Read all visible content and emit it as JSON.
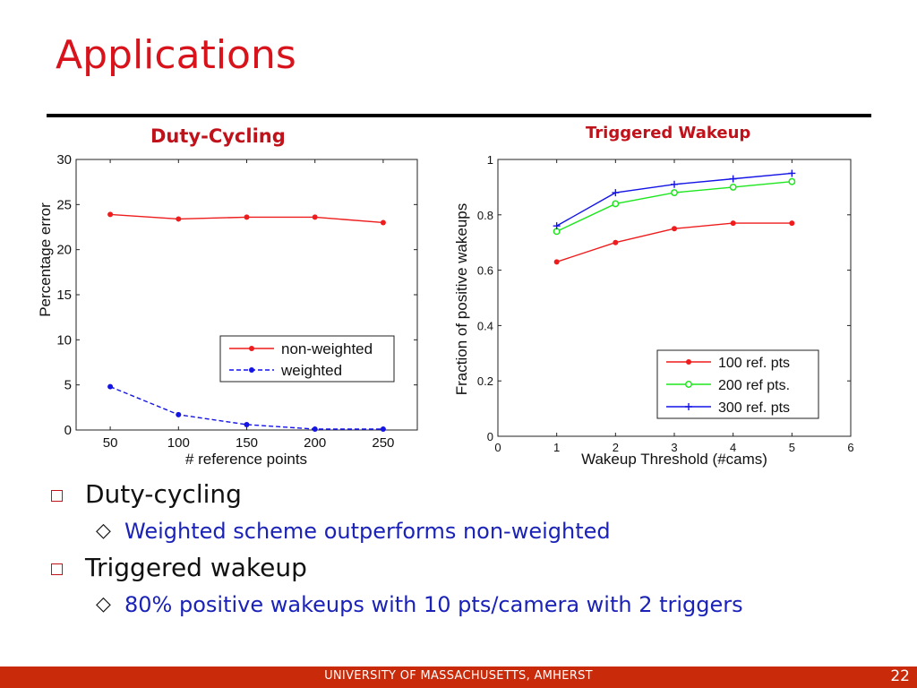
{
  "slide": {
    "title": "Applications",
    "footer": "UNIVERSITY OF MASSACHUSETTS, AMHERST",
    "page_number": "22"
  },
  "bullets": [
    {
      "text": "Duty-cycling",
      "sub": "Weighted scheme outperforms non-weighted"
    },
    {
      "text": "Triggered wakeup",
      "sub": "80% positive wakeups with 10 pts/camera with 2 triggers"
    }
  ],
  "colors": {
    "title": "#d9131c",
    "sub_bullet_text": "#1a22b8",
    "footer_bg": "#c82a0a",
    "red_series": "#ee1c1c",
    "blue_series": "#1414e6",
    "green_series": "#1ee61e"
  },
  "chart_data": [
    {
      "type": "line",
      "title": "Duty-Cycling",
      "xlabel": "# reference points",
      "ylabel": "Percentage error",
      "x": [
        50,
        100,
        150,
        200,
        250
      ],
      "xlim": [
        25,
        275
      ],
      "ylim": [
        0,
        30
      ],
      "xticks": [
        "50",
        "100",
        "150",
        "200",
        "250"
      ],
      "yticks": [
        "0",
        "5",
        "10",
        "15",
        "20",
        "25",
        "30"
      ],
      "grid": false,
      "legend": "center-right",
      "series": [
        {
          "name": "non-weighted",
          "values": [
            23.9,
            23.4,
            23.6,
            23.6,
            23.0
          ],
          "color": "#ee1c1c",
          "dash": "solid",
          "marker": "dot"
        },
        {
          "name": "weighted",
          "values": [
            4.8,
            1.7,
            0.6,
            0.1,
            0.1
          ],
          "color": "#1414e6",
          "dash": "dashed",
          "marker": "dot"
        }
      ]
    },
    {
      "type": "line",
      "title": "Triggered Wakeup",
      "xlabel": "Wakeup Threshold (#cams)",
      "ylabel": "Fraction of positive wakeups",
      "x": [
        1,
        2,
        3,
        4,
        5
      ],
      "xlim": [
        0,
        6
      ],
      "ylim": [
        0,
        1
      ],
      "xticks": [
        "0",
        "1",
        "2",
        "3",
        "4",
        "5",
        "6"
      ],
      "yticks": [
        "0",
        "0.2",
        "0.4",
        "0.6",
        "0.8",
        "1"
      ],
      "grid": false,
      "legend": "bottom-right",
      "series": [
        {
          "name": "100 ref. pts",
          "values": [
            0.63,
            0.7,
            0.75,
            0.77,
            0.77
          ],
          "color": "#ee1c1c",
          "dash": "solid",
          "marker": "dot"
        },
        {
          "name": "200 ref pts.",
          "values": [
            0.74,
            0.84,
            0.88,
            0.9,
            0.92
          ],
          "color": "#1ee61e",
          "dash": "solid",
          "marker": "circle"
        },
        {
          "name": "300 ref. pts",
          "values": [
            0.76,
            0.88,
            0.91,
            0.93,
            0.95
          ],
          "color": "#1414e6",
          "dash": "solid",
          "marker": "plus"
        }
      ]
    }
  ]
}
